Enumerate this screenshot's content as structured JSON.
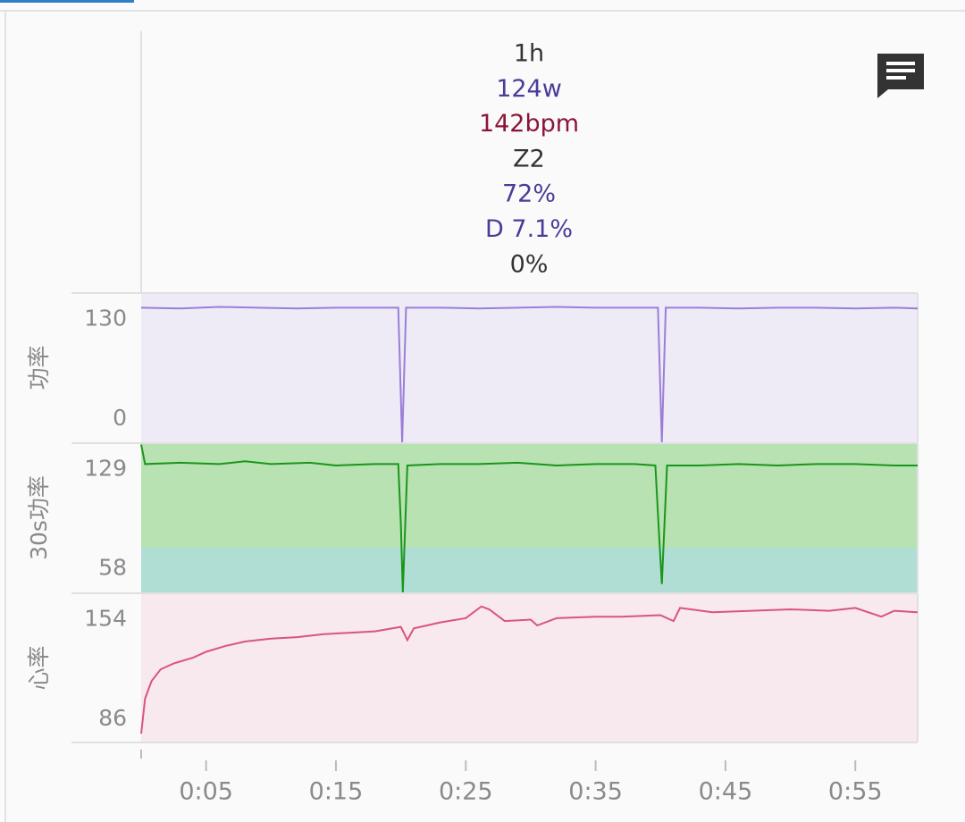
{
  "header": {
    "lines": [
      {
        "text": "1h",
        "color": "#333333"
      },
      {
        "text": "124w",
        "color": "#4b3c98"
      },
      {
        "text": "142bpm",
        "color": "#8a1538"
      },
      {
        "text": "Z2",
        "color": "#333333"
      },
      {
        "text": "72%",
        "color": "#4b3c98"
      },
      {
        "text": "D 7.1%",
        "color": "#4b3c98"
      },
      {
        "text": "0%",
        "color": "#333333"
      }
    ]
  },
  "chart_data": [
    {
      "type": "line",
      "y_label": "功率",
      "color": "#9a7ed8",
      "background": "#eeebf6",
      "x": [
        0,
        3,
        6,
        9,
        12,
        15,
        18,
        19.8,
        20.1,
        20.4,
        23,
        26,
        29,
        32,
        35,
        38,
        39.8,
        40.1,
        40.4,
        43,
        46,
        49,
        52,
        55,
        58,
        59.8
      ],
      "values": [
        145,
        144,
        146,
        145,
        144,
        145,
        145,
        145,
        -30,
        145,
        145,
        144,
        145,
        146,
        145,
        145,
        145,
        -30,
        145,
        145,
        144,
        145,
        145,
        144,
        145,
        144
      ],
      "xlim": [
        0,
        59.8
      ],
      "ylim": [
        -30,
        164
      ],
      "yticks": [
        0,
        130
      ]
    },
    {
      "type": "line",
      "y_label": "30s功率",
      "color": "#1a961a",
      "background": "#b8e2b2",
      "zone_split": 73,
      "zone_color": "#b0ddd4",
      "x": [
        0,
        0.3,
        3,
        6,
        8,
        10,
        13,
        15,
        18,
        19.8,
        20.0,
        20.15,
        20.5,
        23,
        26,
        29,
        32,
        35,
        38,
        39.6,
        39.9,
        40.1,
        40.5,
        43,
        46,
        49,
        52,
        55,
        58,
        59.8
      ],
      "values": [
        147,
        133,
        134,
        133,
        135,
        133,
        134,
        132,
        133,
        133,
        90,
        41,
        132,
        133,
        133,
        134,
        132,
        133,
        133,
        132,
        80,
        47,
        132,
        132,
        133,
        132,
        133,
        133,
        132,
        132
      ],
      "xlim": [
        0,
        59.8
      ],
      "ylim": [
        41,
        148
      ],
      "yticks": [
        58,
        129
      ]
    },
    {
      "type": "line",
      "y_label": "心率",
      "color": "#d9557c",
      "background": "#f7e9ed",
      "x": [
        0,
        0.3,
        0.8,
        1.5,
        2.5,
        4,
        5,
        6.5,
        8,
        10,
        12,
        14,
        16,
        18,
        20,
        20.5,
        21,
        23,
        25,
        26.2,
        26.8,
        28,
        30,
        30.5,
        32,
        35,
        37,
        40,
        41,
        41.5,
        44,
        47,
        50,
        53,
        55,
        57,
        58,
        59.8
      ],
      "values": [
        76,
        100,
        112,
        120,
        124,
        128,
        132,
        136,
        139,
        141,
        142,
        144,
        145,
        146,
        149,
        140,
        148,
        152,
        155,
        163,
        161,
        153,
        154,
        150,
        155,
        156,
        156,
        157,
        153,
        162,
        159,
        160,
        161,
        160,
        162,
        156,
        160,
        159
      ],
      "xlim": [
        0,
        59.8
      ],
      "ylim": [
        70,
        172
      ],
      "yticks": [
        86,
        154
      ],
      "xticks": [
        {
          "value": 5,
          "label": "0:05"
        },
        {
          "value": 15,
          "label": "0:15"
        },
        {
          "value": 25,
          "label": "0:25"
        },
        {
          "value": 35,
          "label": "0:35"
        },
        {
          "value": 45,
          "label": "0:45"
        },
        {
          "value": 55,
          "label": "0:55"
        }
      ]
    }
  ]
}
